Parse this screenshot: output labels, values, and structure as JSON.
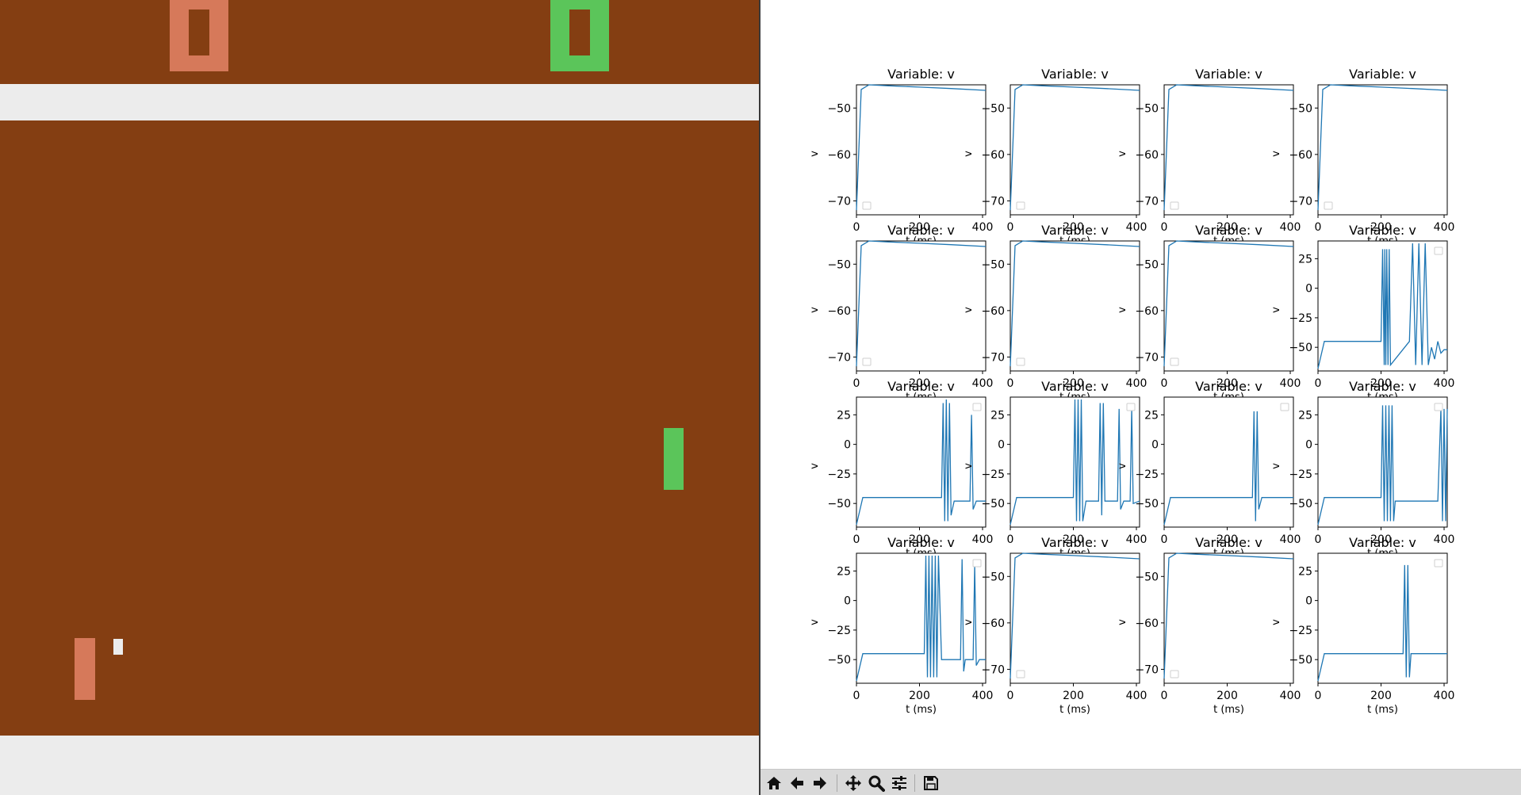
{
  "game": {
    "colors": {
      "background": "#843e12",
      "band": "#ececec",
      "orange": "#d6795a",
      "green": "#5bc55a",
      "ball": "#ececec"
    },
    "top_score": {
      "left_digit": "0",
      "right_digit": "0"
    }
  },
  "figure": {
    "panels": [
      {
        "title": "Variable: v",
        "ylabel": "v",
        "xlabel": "t (ms)",
        "kind": "flat",
        "yticks": [
          "−50",
          "−60",
          "−70"
        ]
      },
      {
        "title": "Variable: v",
        "ylabel": "v",
        "xlabel": "t (ms)",
        "kind": "flat",
        "yticks": [
          "−50",
          "−60",
          "−70"
        ]
      },
      {
        "title": "Variable: v",
        "ylabel": "v",
        "xlabel": "t (ms)",
        "kind": "flat",
        "yticks": [
          "−50",
          "−60",
          "−70"
        ]
      },
      {
        "title": "Variable: v",
        "ylabel": "v",
        "xlabel": "t (ms)",
        "kind": "flat",
        "yticks": [
          "−50",
          "−60",
          "−70"
        ]
      },
      {
        "title": "Variable: v",
        "ylabel": "v",
        "xlabel": "t (ms)",
        "kind": "flat",
        "yticks": [
          "−50",
          "−60",
          "−70"
        ]
      },
      {
        "title": "Variable: v",
        "ylabel": "v",
        "xlabel": "t (ms)",
        "kind": "flat",
        "yticks": [
          "−50",
          "−60",
          "−70"
        ]
      },
      {
        "title": "Variable: v",
        "ylabel": "v",
        "xlabel": "t (ms)",
        "kind": "flat",
        "yticks": [
          "−50",
          "−60",
          "−70"
        ]
      },
      {
        "title": "Variable: v",
        "ylabel": "v",
        "xlabel": "t (ms)",
        "kind": "spike",
        "yticks": [
          "25",
          "0",
          "−25",
          "−50"
        ]
      },
      {
        "title": "Variable: v",
        "ylabel": "v",
        "xlabel": "t (ms)",
        "kind": "spike",
        "yticks": [
          "25",
          "0",
          "−25",
          "−50"
        ]
      },
      {
        "title": "Variable: v",
        "ylabel": "v",
        "xlabel": "t (ms)",
        "kind": "spike",
        "yticks": [
          "25",
          "0",
          "−25",
          "−50"
        ]
      },
      {
        "title": "Variable: v",
        "ylabel": "v",
        "xlabel": "t (ms)",
        "kind": "spike",
        "yticks": [
          "25",
          "0",
          "−25",
          "−50"
        ]
      },
      {
        "title": "Variable: v",
        "ylabel": "v",
        "xlabel": "t (ms)",
        "kind": "spike",
        "yticks": [
          "25",
          "0",
          "−25",
          "−50"
        ]
      },
      {
        "title": "Variable: v",
        "ylabel": "v",
        "xlabel": "t (ms)",
        "kind": "spike",
        "yticks": [
          "25",
          "0",
          "−25",
          "−50"
        ]
      },
      {
        "title": "Variable: v",
        "ylabel": "v",
        "xlabel": "t (ms)",
        "kind": "flat",
        "yticks": [
          "−50",
          "−60",
          "−70"
        ]
      },
      {
        "title": "Variable: v",
        "ylabel": "v",
        "xlabel": "t (ms)",
        "kind": "flat",
        "yticks": [
          "−50",
          "−60",
          "−70"
        ]
      },
      {
        "title": "Variable: v",
        "ylabel": "v",
        "xlabel": "t (ms)",
        "kind": "spike",
        "yticks": [
          "25",
          "0",
          "−25",
          "−50"
        ]
      }
    ],
    "xticks": [
      "0",
      "200",
      "400"
    ],
    "line_color": "#1f77b4"
  },
  "chart_data": {
    "type": "line",
    "layout": "4x4 grid of subplots",
    "xlim": [
      0,
      410
    ],
    "flat_ylim": [
      -73,
      -45
    ],
    "spike_ylim": [
      -70,
      40
    ],
    "series": [
      {
        "x": [
          0,
          15,
          40,
          100,
          200,
          300,
          410
        ],
        "y": [
          -72,
          -46,
          -45,
          -45.2,
          -45.5,
          -45.8,
          -46.2
        ]
      },
      {
        "x": [
          0,
          15,
          40,
          100,
          200,
          300,
          410
        ],
        "y": [
          -72,
          -46,
          -45,
          -45.2,
          -45.5,
          -45.8,
          -46.2
        ]
      },
      {
        "x": [
          0,
          15,
          40,
          100,
          200,
          300,
          410
        ],
        "y": [
          -72,
          -46,
          -45,
          -45.2,
          -45.5,
          -45.8,
          -46.2
        ]
      },
      {
        "x": [
          0,
          15,
          40,
          100,
          200,
          300,
          410
        ],
        "y": [
          -72,
          -46,
          -45,
          -45.2,
          -45.5,
          -45.8,
          -46.2
        ]
      },
      {
        "x": [
          0,
          15,
          40,
          100,
          200,
          300,
          410
        ],
        "y": [
          -72,
          -46,
          -45,
          -45.2,
          -45.5,
          -45.8,
          -46.2
        ]
      },
      {
        "x": [
          0,
          15,
          40,
          100,
          200,
          300,
          410
        ],
        "y": [
          -72,
          -46,
          -45,
          -45.2,
          -45.5,
          -45.8,
          -46.2
        ]
      },
      {
        "x": [
          0,
          15,
          40,
          100,
          200,
          300,
          410
        ],
        "y": [
          -72,
          -46,
          -45,
          -45.2,
          -45.5,
          -45.8,
          -46.2
        ]
      },
      {
        "x": [
          0,
          20,
          200,
          205,
          210,
          212,
          215,
          218,
          222,
          226,
          230,
          290,
          300,
          310,
          320,
          330,
          340,
          350,
          360,
          370,
          380,
          390,
          400,
          410
        ],
        "y": [
          -68,
          -45,
          -45,
          33,
          -65,
          33,
          -65,
          33,
          -65,
          33,
          -65,
          -45,
          38,
          -65,
          38,
          -65,
          38,
          -65,
          -50,
          -60,
          -45,
          -55,
          -52,
          -52
        ]
      },
      {
        "x": [
          0,
          20,
          270,
          275,
          280,
          285,
          290,
          295,
          300,
          310,
          340,
          360,
          365,
          370,
          380,
          410
        ],
        "y": [
          -68,
          -45,
          -45,
          35,
          -65,
          38,
          -65,
          35,
          -60,
          -48,
          -48,
          -48,
          25,
          -55,
          -48,
          -48
        ]
      },
      {
        "x": [
          0,
          20,
          200,
          205,
          210,
          215,
          220,
          225,
          230,
          240,
          280,
          285,
          290,
          295,
          300,
          340,
          345,
          350,
          360,
          380,
          385,
          390,
          410
        ],
        "y": [
          -68,
          -45,
          -45,
          38,
          -65,
          38,
          -65,
          38,
          -65,
          -48,
          -48,
          35,
          -60,
          35,
          -48,
          -48,
          30,
          -55,
          -48,
          -48,
          30,
          -50,
          -48
        ]
      },
      {
        "x": [
          0,
          20,
          280,
          285,
          290,
          295,
          300,
          310,
          410
        ],
        "y": [
          -68,
          -45,
          -45,
          28,
          -65,
          28,
          -55,
          -45,
          -45
        ]
      },
      {
        "x": [
          0,
          20,
          200,
          205,
          210,
          215,
          220,
          225,
          230,
          235,
          240,
          245,
          250,
          380,
          390,
          395,
          400,
          405,
          410
        ],
        "y": [
          -68,
          -45,
          -45,
          33,
          -65,
          33,
          -65,
          33,
          -65,
          33,
          -65,
          -48,
          -48,
          -48,
          30,
          -65,
          30,
          -65,
          30
        ]
      },
      {
        "x": [
          0,
          20,
          215,
          220,
          225,
          230,
          235,
          240,
          245,
          250,
          255,
          260,
          270,
          320,
          330,
          335,
          340,
          345,
          360,
          370,
          375,
          380,
          390,
          410
        ],
        "y": [
          -68,
          -45,
          -45,
          38,
          -65,
          38,
          -65,
          38,
          -65,
          38,
          -65,
          38,
          -50,
          -50,
          -50,
          35,
          -60,
          -50,
          -50,
          -50,
          30,
          -55,
          -50,
          -50
        ]
      },
      {
        "x": [
          0,
          15,
          40,
          100,
          200,
          300,
          410
        ],
        "y": [
          -72,
          -46,
          -45,
          -45.2,
          -45.5,
          -45.8,
          -46.2
        ]
      },
      {
        "x": [
          0,
          15,
          40,
          100,
          200,
          300,
          410
        ],
        "y": [
          -72,
          -46,
          -45,
          -45.2,
          -45.5,
          -45.8,
          -46.2
        ]
      },
      {
        "x": [
          0,
          20,
          270,
          275,
          280,
          285,
          290,
          295,
          300,
          410
        ],
        "y": [
          -68,
          -45,
          -45,
          30,
          -65,
          30,
          -65,
          -45,
          -45,
          -45
        ]
      }
    ]
  },
  "toolbar": {
    "buttons": [
      {
        "name": "home-button",
        "icon": "home-icon",
        "glyph": "⌂"
      },
      {
        "name": "back-button",
        "icon": "left-arrow-icon",
        "glyph": "←"
      },
      {
        "name": "forward-button",
        "icon": "right-arrow-icon",
        "glyph": "→"
      },
      {
        "name": "pan-button",
        "icon": "move-icon",
        "glyph": "✥"
      },
      {
        "name": "zoom-button",
        "icon": "magnifier-icon",
        "glyph": "🔍"
      },
      {
        "name": "configure-button",
        "icon": "sliders-icon",
        "glyph": "≡"
      },
      {
        "name": "save-button",
        "icon": "floppy-icon",
        "glyph": "💾"
      }
    ]
  }
}
